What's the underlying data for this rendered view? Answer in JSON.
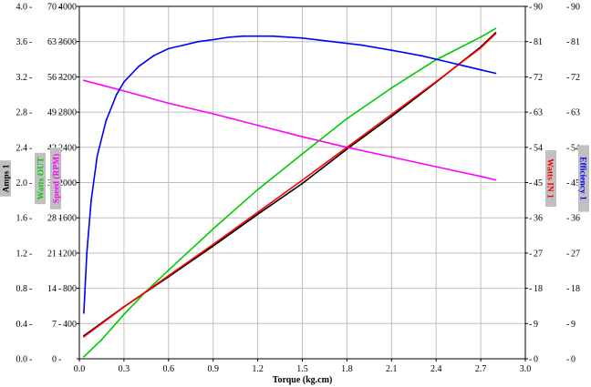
{
  "chart_data": {
    "type": "line",
    "xlabel": "Torque (kg.cm)",
    "x_ticks": [
      "0.0",
      "0.3",
      "0.6",
      "0.9",
      "1.2",
      "1.5",
      "1.8",
      "2.1",
      "2.4",
      "2.7",
      "3.0"
    ],
    "xlim": [
      0,
      3.0
    ],
    "grid": true,
    "axes": {
      "amps": {
        "label": "Amps 1",
        "ticks": [
          "0.0",
          "0.4",
          "0.8",
          "1.2",
          "1.6",
          "2.0",
          "2.4",
          "2.8",
          "3.2",
          "3.6",
          "4.0"
        ],
        "range": [
          0,
          4.0
        ]
      },
      "watts_out": {
        "label": "Watts OUT",
        "ticks": [
          "0",
          "7",
          "14",
          "21",
          "28",
          "35",
          "42",
          "49",
          "56",
          "63",
          "70"
        ],
        "range": [
          0,
          70
        ]
      },
      "speed": {
        "label": "Speed (RPM)",
        "ticks": [
          "",
          "400",
          "800",
          "1200",
          "1600",
          "2000",
          "2400",
          "2800",
          "3200",
          "3600",
          "4000"
        ],
        "range": [
          0,
          4000
        ]
      },
      "watts_in": {
        "label": "Watts IN 1",
        "ticks": [
          "0",
          "9",
          "18",
          "27",
          "36",
          "45",
          "54",
          "63",
          "72",
          "81",
          "90"
        ],
        "range": [
          0,
          90
        ]
      },
      "efficiency": {
        "label": "Efficiency 1",
        "ticks": [
          "0",
          "9",
          "18",
          "27",
          "36",
          "45",
          "54",
          "63",
          "72",
          "81",
          "90"
        ],
        "range": [
          0,
          90
        ]
      }
    },
    "colors": {
      "amps": "#000000",
      "watts_out": "#00cc00",
      "speed": "#ff00ff",
      "watts_in": "#ff0000",
      "efficiency": "#0000ff",
      "grid": "#c0c0c0",
      "label_bg": "#c0c0c0"
    },
    "series": [
      {
        "name": "Amps 1",
        "axis": "amps",
        "color": "#000000",
        "x": [
          0.03,
          0.3,
          0.6,
          0.9,
          1.2,
          1.5,
          1.8,
          2.1,
          2.4,
          2.7,
          2.8
        ],
        "y": [
          0.26,
          0.59,
          0.93,
          1.28,
          1.64,
          1.99,
          2.38,
          2.75,
          3.14,
          3.54,
          3.7
        ]
      },
      {
        "name": "Watts OUT",
        "axis": "watts_out",
        "color": "#00cc00",
        "x": [
          0.03,
          0.15,
          0.3,
          0.45,
          0.6,
          0.9,
          1.2,
          1.5,
          1.8,
          2.1,
          2.4,
          2.7,
          2.8
        ],
        "y": [
          0.4,
          3.8,
          8.8,
          13.4,
          17.6,
          25.8,
          33.6,
          40.7,
          47.7,
          53.8,
          59.4,
          63.9,
          65.6
        ]
      },
      {
        "name": "Speed (RPM)",
        "axis": "speed",
        "color": "#ff00ff",
        "x": [
          0.03,
          0.3,
          0.6,
          0.9,
          1.2,
          1.5,
          1.8,
          2.1,
          2.4,
          2.7,
          2.8
        ],
        "y": [
          3160,
          3040,
          2900,
          2780,
          2650,
          2520,
          2400,
          2290,
          2180,
          2070,
          2030
        ]
      },
      {
        "name": "Watts IN 1",
        "axis": "watts_in",
        "color": "#ff0000",
        "x": [
          0.03,
          0.3,
          0.6,
          0.9,
          1.2,
          1.5,
          1.8,
          2.1,
          2.4,
          2.7,
          2.8
        ],
        "y": [
          5.6,
          13.2,
          21.2,
          29.2,
          37.4,
          45.6,
          54.0,
          62.4,
          70.8,
          79.4,
          83.0
        ]
      },
      {
        "name": "Efficiency 1",
        "axis": "efficiency",
        "color": "#0000ff",
        "x": [
          0.03,
          0.05,
          0.08,
          0.12,
          0.18,
          0.25,
          0.3,
          0.4,
          0.5,
          0.6,
          0.7,
          0.8,
          0.9,
          1.0,
          1.1,
          1.2,
          1.3,
          1.5,
          1.7,
          1.9,
          2.1,
          2.3,
          2.5,
          2.7,
          2.8
        ],
        "y": [
          11.7,
          27.0,
          40.5,
          51.8,
          60.8,
          67.5,
          70.7,
          74.7,
          77.4,
          79.2,
          80.1,
          81.0,
          81.5,
          82.1,
          82.4,
          82.4,
          82.4,
          81.9,
          81.0,
          80.1,
          78.8,
          77.4,
          75.6,
          73.8,
          72.9
        ]
      }
    ]
  }
}
